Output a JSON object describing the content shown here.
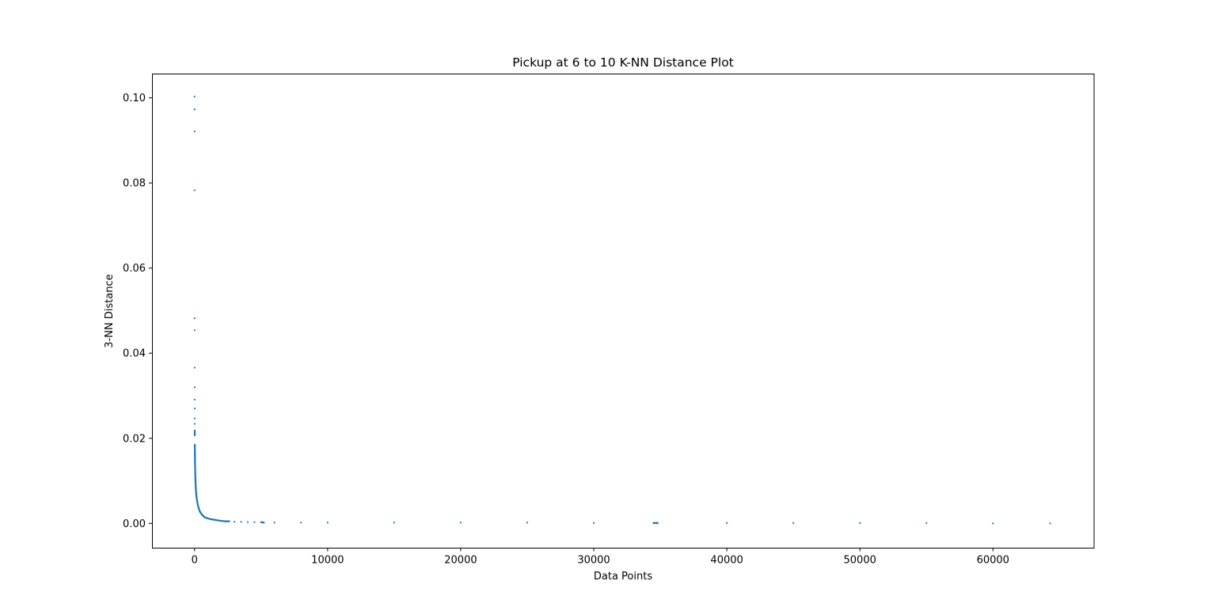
{
  "chart_data": {
    "type": "scatter",
    "title": "Pickup at 6 to 10 K-NN Distance Plot",
    "xlabel": "Data Points",
    "ylabel": "3-NN Distance",
    "xlim": [
      -3200,
      67600
    ],
    "ylim": [
      -0.0058,
      0.1056
    ],
    "xticks": [
      0,
      10000,
      20000,
      30000,
      40000,
      50000,
      60000
    ],
    "xtick_labels": [
      "0",
      "10000",
      "20000",
      "30000",
      "40000",
      "50000",
      "60000"
    ],
    "yticks": [
      0.0,
      0.02,
      0.04,
      0.06,
      0.08,
      0.1
    ],
    "ytick_labels": [
      "0.00",
      "0.02",
      "0.04",
      "0.06",
      "0.08",
      "0.10"
    ],
    "grid": false,
    "marker_color": "#1f77b4",
    "series": [
      {
        "x": [
          0,
          1,
          2,
          3,
          4,
          5,
          6,
          7,
          8,
          9,
          10,
          11,
          12,
          13,
          14,
          16,
          18,
          20,
          22,
          24,
          26,
          28,
          30,
          33,
          36,
          40,
          45,
          50,
          55,
          60,
          70,
          80,
          90,
          100,
          120,
          140,
          160,
          180,
          200,
          250,
          300,
          350,
          400,
          500,
          600,
          700,
          800,
          900,
          1000,
          1200,
          1400,
          1600,
          1800,
          2000,
          2300,
          2600,
          3000,
          3500,
          4000,
          4500,
          5000,
          5200,
          6000,
          8000,
          10000,
          15000,
          20000,
          25000,
          30000,
          34500,
          34800,
          40000,
          45000,
          50000,
          55000,
          60000,
          64300
        ],
        "y": [
          0.1003,
          0.0973,
          0.0921,
          0.0783,
          0.0482,
          0.0454,
          0.0366,
          0.032,
          0.0291,
          0.027,
          0.0247,
          0.0234,
          0.0218,
          0.0213,
          0.0207,
          0.0185,
          0.0178,
          0.0171,
          0.0166,
          0.016,
          0.0156,
          0.0152,
          0.0148,
          0.0143,
          0.0138,
          0.0132,
          0.0125,
          0.0118,
          0.0112,
          0.0106,
          0.0097,
          0.009,
          0.0084,
          0.0078,
          0.007,
          0.0064,
          0.0059,
          0.0055,
          0.0051,
          0.0043,
          0.0037,
          0.0032,
          0.0028,
          0.0023,
          0.0019,
          0.0016,
          0.0014,
          0.0013,
          0.0012,
          0.001,
          0.0009,
          0.0008,
          0.0007,
          0.0006,
          0.0005,
          0.0005,
          0.0004,
          0.0004,
          0.0003,
          0.0003,
          0.0003,
          0.0002,
          0.0002,
          0.0002,
          0.0002,
          0.0002,
          0.0002,
          0.0002,
          0.0001,
          0.0001,
          0.0001,
          0.0001,
          0.0001,
          0.0001,
          0.0001,
          0.0,
          0.0
        ]
      }
    ]
  }
}
